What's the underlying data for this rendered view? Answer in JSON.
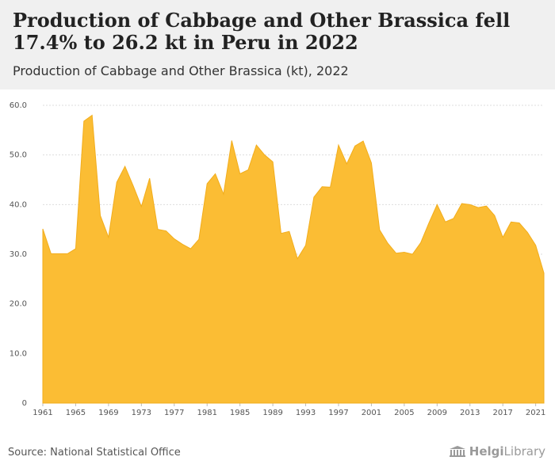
{
  "header": {
    "title": "Production of Cabbage and Other Brassica fell 17.4% to 26.2 kt in Peru in 2022",
    "subtitle": "Production of Cabbage and Other Brassica (kt), 2022"
  },
  "footer": {
    "source": "Source: National Statistical Office",
    "logo_text_bold": "Helgi",
    "logo_text": "Library"
  },
  "colors": {
    "area_fill": "#fbbd34",
    "area_stroke": "#f2ad1c",
    "header_bg": "#f0f0f0",
    "grid": "#dddddd"
  },
  "chart_data": {
    "type": "area",
    "title": "",
    "xlabel": "",
    "ylabel": "",
    "ylim": [
      0,
      60
    ],
    "y_ticks": [
      "0",
      "10.0",
      "20.0",
      "30.0",
      "40.0",
      "50.0",
      "60.0"
    ],
    "x_ticks": [
      "1961",
      "1965",
      "1969",
      "1973",
      "1977",
      "1981",
      "1985",
      "1989",
      "1993",
      "1997",
      "2001",
      "2005",
      "2009",
      "2013",
      "2017",
      "2021"
    ],
    "grid": "horizontal",
    "series": [
      {
        "x": [
          1961,
          1962,
          1963,
          1964,
          1965,
          1966,
          1967,
          1968,
          1969,
          1970,
          1971,
          1972,
          1973,
          1974,
          1975,
          1976,
          1977,
          1978,
          1979,
          1980,
          1981,
          1982,
          1983,
          1984,
          1985,
          1986,
          1987,
          1988,
          1989,
          1990,
          1991,
          1992,
          1993,
          1994,
          1995,
          1996,
          1997,
          1998,
          1999,
          2000,
          2001,
          2002,
          2003,
          2004,
          2005,
          2006,
          2007,
          2008,
          2009,
          2010,
          2011,
          2012,
          2013,
          2014,
          2015,
          2016,
          2017,
          2018,
          2019,
          2020,
          2021,
          2022
        ],
        "values": [
          35.1,
          30.1,
          30.1,
          30.1,
          31.1,
          56.8,
          58.0,
          37.8,
          33.4,
          44.5,
          47.7,
          43.8,
          39.6,
          45.3,
          35.0,
          34.7,
          33.1,
          32.0,
          31.1,
          33.0,
          44.2,
          46.2,
          42.1,
          52.9,
          46.2,
          47.0,
          52.0,
          50.0,
          48.6,
          34.2,
          34.6,
          29.1,
          31.8,
          41.5,
          43.6,
          43.5,
          52.0,
          48.2,
          51.8,
          52.8,
          48.4,
          34.9,
          32.2,
          30.2,
          30.4,
          30.0,
          32.3,
          36.3,
          40.0,
          36.5,
          37.2,
          40.2,
          40.0,
          39.4,
          39.7,
          37.8,
          33.4,
          36.5,
          36.3,
          34.4,
          31.8,
          26.2
        ]
      }
    ]
  }
}
